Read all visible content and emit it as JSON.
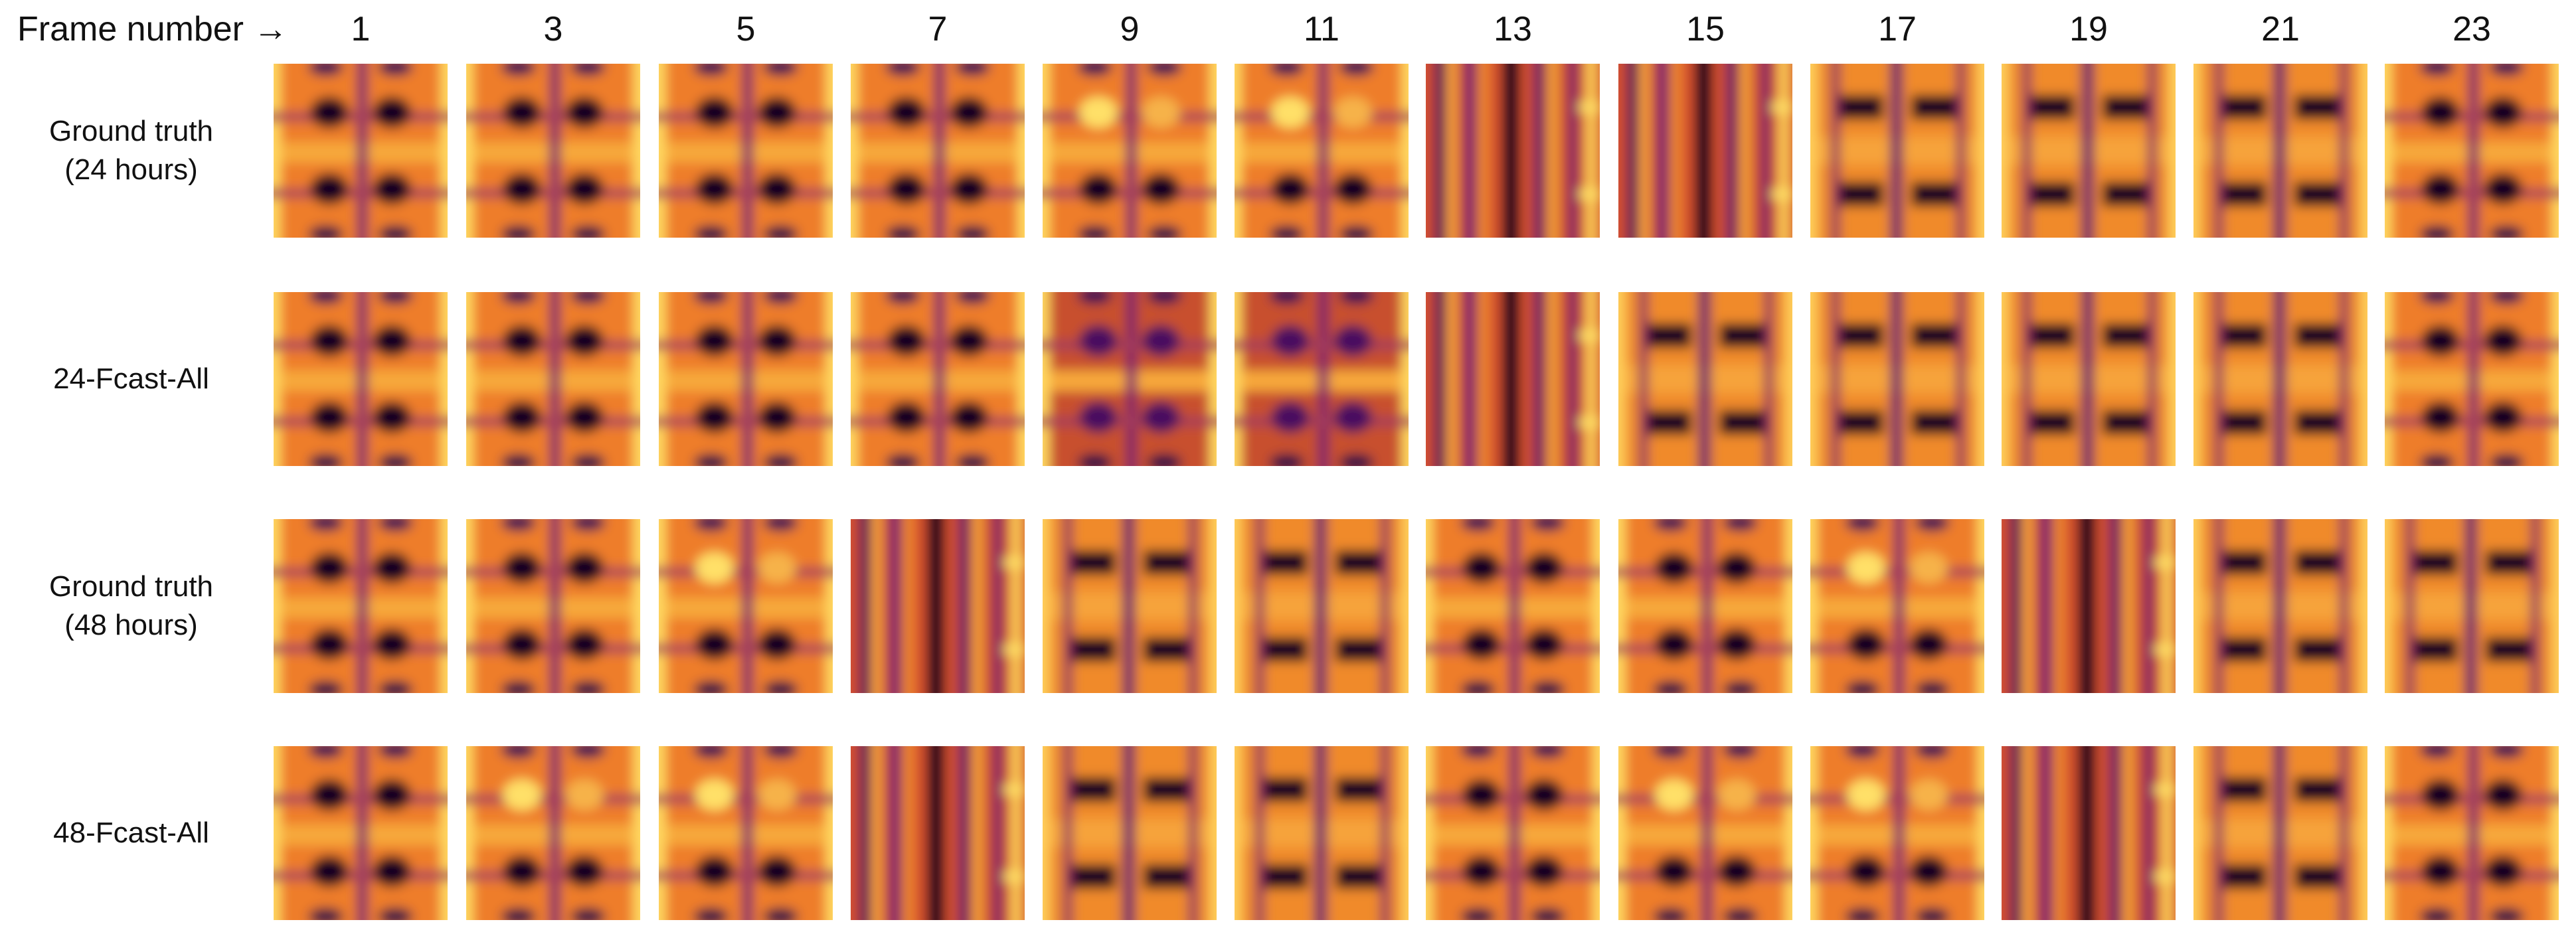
{
  "header": {
    "label": "Frame number →",
    "frames": [
      "1",
      "3",
      "5",
      "7",
      "9",
      "11",
      "13",
      "15",
      "17",
      "19",
      "21",
      "23"
    ]
  },
  "rows": [
    {
      "label_line1": "Ground truth",
      "label_line2": "(24 hours)",
      "patterns": [
        "grid",
        "grid",
        "grid",
        "grid",
        "grid-bright",
        "grid-bright",
        "stripes",
        "stripes",
        "bars",
        "bars",
        "bars",
        "grid"
      ]
    },
    {
      "label_line1": "24-Fcast-All",
      "label_line2": "",
      "patterns": [
        "grid",
        "grid",
        "grid",
        "grid",
        "noisy",
        "noisy",
        "stripes",
        "bars",
        "bars",
        "bars",
        "bars",
        "grid"
      ]
    },
    {
      "label_line1": "Ground truth",
      "label_line2": "(48 hours)",
      "patterns": [
        "grid",
        "grid",
        "grid-bright",
        "stripes",
        "bars",
        "bars",
        "grid",
        "grid",
        "grid-bright",
        "stripes",
        "bars",
        "bars"
      ]
    },
    {
      "label_line1": "48-Fcast-All",
      "label_line2": "",
      "patterns": [
        "grid",
        "grid-bright",
        "grid-bright",
        "stripes",
        "bars",
        "bars",
        "grid",
        "grid-bright",
        "grid-bright",
        "stripes",
        "bars",
        "grid"
      ]
    }
  ]
}
